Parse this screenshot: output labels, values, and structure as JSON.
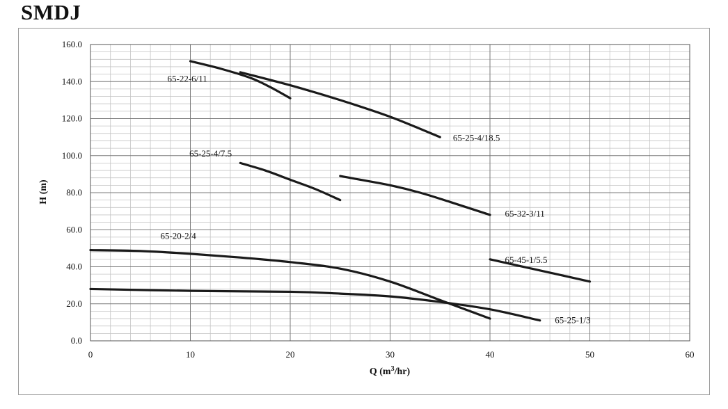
{
  "page": {
    "title": "SMDJ"
  },
  "chart_data": {
    "type": "line",
    "title": "SMDJ",
    "xlabel": "Q (m³/hr)",
    "xlabel_parts": {
      "main": "Q (m",
      "sup": "3",
      "tail": "/hr)"
    },
    "ylabel": "H (m)",
    "xlim": [
      0,
      60
    ],
    "ylim": [
      0,
      160
    ],
    "x_ticks": [
      0,
      10,
      20,
      30,
      40,
      50,
      60
    ],
    "x_tick_labels": [
      "0",
      "10",
      "20",
      "30",
      "40",
      "50",
      "60"
    ],
    "y_ticks": [
      0,
      20,
      40,
      60,
      80,
      100,
      120,
      140,
      160
    ],
    "y_tick_labels": [
      "0.0",
      "20.0",
      "40.0",
      "60.0",
      "80.0",
      "100.0",
      "120.0",
      "140.0",
      "160.0"
    ],
    "grid": true,
    "series": [
      {
        "name": "65-22-6/11",
        "x": [
          10,
          13,
          16,
          18,
          20
        ],
        "y": [
          151,
          147,
          142,
          137,
          131
        ]
      },
      {
        "name": "65-25-4/18.5",
        "x": [
          15,
          20,
          25,
          30,
          35
        ],
        "y": [
          145,
          138,
          130,
          121,
          110
        ]
      },
      {
        "name": "65-25-4/7.5",
        "x": [
          15,
          17.5,
          20,
          22.5,
          25
        ],
        "y": [
          96,
          92,
          87,
          82,
          76
        ]
      },
      {
        "name": "65-32-3/11",
        "x": [
          25,
          27,
          30,
          33,
          36,
          40
        ],
        "y": [
          89,
          87,
          84,
          80,
          75,
          68
        ]
      },
      {
        "name": "65-20-2/4",
        "x": [
          0,
          5,
          10,
          15,
          20,
          25,
          30,
          35,
          40
        ],
        "y": [
          49,
          48.5,
          47,
          45,
          42.5,
          39,
          32,
          22,
          12
        ]
      },
      {
        "name": "65-45-1/5.5",
        "x": [
          40,
          45,
          50
        ],
        "y": [
          44,
          38,
          32
        ]
      },
      {
        "name": "65-25-1/3",
        "x": [
          0,
          10,
          20,
          25,
          30,
          35,
          40,
          45
        ],
        "y": [
          28,
          27,
          26.5,
          25.5,
          24,
          21,
          17,
          11
        ]
      }
    ],
    "labels": [
      {
        "text": "65-22-6/11",
        "x": 7.7,
        "y": 140
      },
      {
        "text": "65-25-4/18.5",
        "x": 36.3,
        "y": 108
      },
      {
        "text": "65-25-4/7.5",
        "x": 9.9,
        "y": 99.5
      },
      {
        "text": "65-32-3/11",
        "x": 41.5,
        "y": 67
      },
      {
        "text": "65-20-2/4",
        "x": 7.0,
        "y": 55
      },
      {
        "text": "65-45-1/5.5",
        "x": 41.5,
        "y": 42
      },
      {
        "text": "65-25-1/3",
        "x": 46.5,
        "y": 9.5
      }
    ]
  }
}
